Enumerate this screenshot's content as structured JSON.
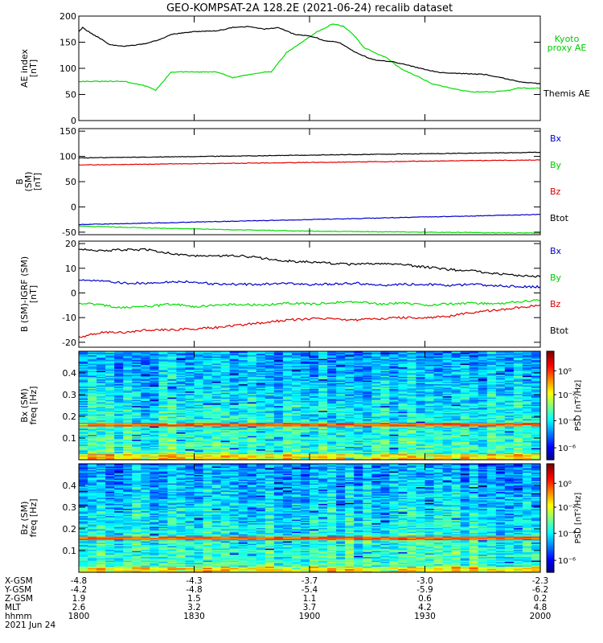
{
  "title": "GEO-KOMPSAT-2A 128.2E (2021-06-24) recalib dataset",
  "colors": {
    "black": "#000000",
    "green": "#00dd00",
    "red": "#e00000",
    "blue": "#0000cc",
    "legend_green": "#00cc00",
    "legend_red": "#dd0000"
  },
  "chart_data": [
    {
      "type": "line",
      "ylabel": [
        "AE index",
        "[nT]"
      ],
      "ylim": [
        0,
        200
      ],
      "yticks": [
        0,
        50,
        100,
        150,
        200
      ],
      "legend": [
        {
          "name": "Kyoto\nproxy AE",
          "color": "green"
        },
        {
          "name": "Themis AE",
          "color": "black"
        }
      ],
      "series": [
        {
          "name": "Kyoto proxy AE",
          "color": "green",
          "x": [
            0,
            30,
            60,
            90,
            100,
            110,
            120,
            150,
            180,
            200,
            240,
            250,
            270,
            290,
            300,
            310,
            330,
            345,
            360,
            370,
            400,
            420,
            440,
            460,
            490,
            510,
            540,
            560,
            570,
            600
          ],
          "y": [
            75,
            75,
            75,
            65,
            58,
            75,
            93,
            93,
            93,
            82,
            93,
            93,
            130,
            150,
            160,
            170,
            185,
            180,
            160,
            140,
            120,
            98,
            85,
            70,
            60,
            55,
            55,
            58,
            62,
            62
          ]
        },
        {
          "name": "Themis AE",
          "color": "black",
          "x": [
            0,
            5,
            15,
            30,
            40,
            60,
            90,
            110,
            120,
            150,
            180,
            200,
            220,
            240,
            260,
            280,
            300,
            310,
            320,
            330,
            340,
            350,
            360,
            380,
            390,
            410,
            430,
            450,
            470,
            500,
            530,
            550,
            570,
            600
          ],
          "y": [
            170,
            178,
            168,
            155,
            145,
            142,
            148,
            158,
            165,
            170,
            172,
            178,
            180,
            175,
            178,
            165,
            162,
            158,
            152,
            152,
            148,
            140,
            130,
            118,
            115,
            112,
            105,
            98,
            92,
            90,
            88,
            82,
            75,
            70
          ]
        }
      ]
    },
    {
      "type": "line",
      "ylabel": [
        "B",
        "(SM)",
        "[nT]"
      ],
      "ylim": [
        -55,
        155
      ],
      "yticks": [
        -50,
        0,
        50,
        100,
        150
      ],
      "legend": [
        {
          "name": "Bx",
          "color": "blue"
        },
        {
          "name": "By",
          "color": "green"
        },
        {
          "name": "Bz",
          "color": "red"
        },
        {
          "name": "Btot",
          "color": "black"
        }
      ],
      "series": [
        {
          "name": "Btot",
          "color": "black",
          "x": [
            0,
            600
          ],
          "y": [
            97,
            108
          ]
        },
        {
          "name": "Bz",
          "color": "red",
          "x": [
            0,
            600
          ],
          "y": [
            83,
            93
          ]
        },
        {
          "name": "Bx",
          "color": "blue",
          "x": [
            0,
            600
          ],
          "y": [
            -35,
            -15
          ]
        },
        {
          "name": "By",
          "color": "green",
          "x": [
            0,
            100,
            300,
            600
          ],
          "y": [
            -38,
            -42,
            -48,
            -52
          ]
        }
      ]
    },
    {
      "type": "line",
      "ylabel": [
        "B (SM)-IGRF (SM)",
        "[nT]"
      ],
      "ylim": [
        -22,
        21
      ],
      "yticks": [
        -20,
        -10,
        0,
        10,
        20
      ],
      "legend": [
        {
          "name": "Bx",
          "color": "blue"
        },
        {
          "name": "By",
          "color": "green"
        },
        {
          "name": "Bz",
          "color": "red"
        },
        {
          "name": "Btot",
          "color": "black"
        }
      ],
      "series": [
        {
          "name": "Btot",
          "color": "black",
          "x": [
            0,
            30,
            60,
            90,
            120,
            150,
            180,
            210,
            240,
            270,
            300,
            330,
            360,
            390,
            420,
            450,
            480,
            510,
            540,
            570,
            600
          ],
          "y": [
            18,
            17,
            17.5,
            17.5,
            16,
            15,
            15,
            15,
            14,
            13,
            12.5,
            12,
            11.5,
            12,
            11.5,
            10.5,
            9.5,
            9,
            8,
            7,
            6.5
          ]
        },
        {
          "name": "Bx",
          "color": "blue",
          "x": [
            0,
            30,
            60,
            90,
            120,
            150,
            180,
            210,
            240,
            270,
            300,
            330,
            360,
            390,
            420,
            450,
            480,
            510,
            540,
            570,
            600
          ],
          "y": [
            5.5,
            5,
            4,
            4,
            4.5,
            4.5,
            3.5,
            3.5,
            3.5,
            4,
            3.5,
            3.5,
            4,
            3,
            3.5,
            3.5,
            3,
            3.5,
            3,
            2.5,
            2.5
          ]
        },
        {
          "name": "By",
          "color": "green",
          "x": [
            0,
            30,
            60,
            90,
            120,
            150,
            180,
            210,
            240,
            270,
            300,
            330,
            360,
            390,
            420,
            450,
            480,
            510,
            540,
            570,
            600
          ],
          "y": [
            -4,
            -5,
            -6,
            -5.5,
            -4.5,
            -5.5,
            -5,
            -4.5,
            -5,
            -4,
            -4.5,
            -4,
            -3.5,
            -4.5,
            -4,
            -5,
            -4.5,
            -4,
            -4.5,
            -3.5,
            -3
          ]
        },
        {
          "name": "Bz",
          "color": "red",
          "x": [
            0,
            30,
            60,
            90,
            120,
            150,
            180,
            210,
            240,
            270,
            300,
            330,
            360,
            390,
            420,
            450,
            480,
            510,
            540,
            570,
            600
          ],
          "y": [
            -18,
            -16,
            -16,
            -15,
            -15,
            -14.5,
            -14,
            -13,
            -12,
            -11,
            -10.5,
            -10.5,
            -11,
            -10.5,
            -10,
            -10,
            -9.5,
            -8,
            -7,
            -6,
            -5
          ]
        }
      ]
    },
    {
      "type": "heatmap",
      "ylabel": [
        "Bx (SM)",
        "freq [Hz]"
      ],
      "ylim": [
        0,
        0.5
      ],
      "yticks": [
        0.1,
        0.2,
        0.3,
        0.4
      ],
      "colorbar_label": "PSD [nT²/Hz]",
      "colorbar_ticks": [
        "10⁰",
        "10⁻²",
        "10⁻⁴",
        "10⁻⁶"
      ],
      "band_freq": 0.165,
      "seed": 7
    },
    {
      "type": "heatmap",
      "ylabel": [
        "Bz (SM)",
        "freq [Hz]"
      ],
      "ylim": [
        0,
        0.5
      ],
      "yticks": [
        0.1,
        0.2,
        0.3,
        0.4
      ],
      "colorbar_label": "PSD [nT²/Hz]",
      "colorbar_ticks": [
        "10⁰",
        "10⁻²",
        "10⁻⁴",
        "10⁻⁶"
      ],
      "band_freq": 0.16,
      "seed": 13
    }
  ],
  "xaxis": {
    "rows": [
      {
        "label": "X-GSM",
        "values": [
          "-4.8",
          "-4.3",
          "-3.7",
          "-3.0",
          "-2.3"
        ]
      },
      {
        "label": "Y-GSM",
        "values": [
          "-4.2",
          "-4.8",
          "-5.4",
          "-5.9",
          "-6.2"
        ]
      },
      {
        "label": "Z-GSM",
        "values": [
          "1.9",
          "1.5",
          "1.1",
          "0.6",
          "0.2"
        ]
      },
      {
        "label": "MLT",
        "values": [
          "2.6",
          "3.2",
          "3.7",
          "4.2",
          "4.8"
        ]
      },
      {
        "label": "hhmm",
        "values": [
          "1800",
          "1830",
          "1900",
          "1930",
          "2000"
        ]
      }
    ],
    "date": "2021 Jun 24"
  }
}
